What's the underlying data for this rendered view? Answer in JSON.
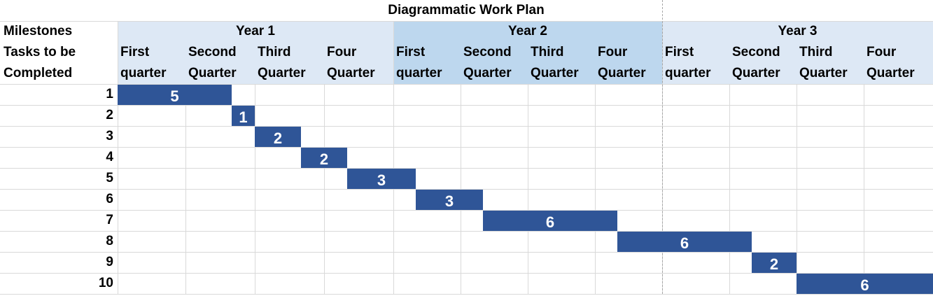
{
  "title": "Diagrammatic Work Plan",
  "header": {
    "milestones_label": "Milestones",
    "tasks_label_line1": "Tasks to be",
    "tasks_label_line2": "Completed"
  },
  "years": [
    {
      "label": "Year 1",
      "color": "#dde8f5"
    },
    {
      "label": "Year 2",
      "color": "#bdd7ee"
    },
    {
      "label": "Year 3",
      "color": "#dde8f5"
    }
  ],
  "quarters": [
    {
      "line1": "First",
      "line2": "quarter"
    },
    {
      "line1": "Second",
      "line2": "Quarter"
    },
    {
      "line1": "Third",
      "line2": "Quarter"
    },
    {
      "line1": "Four",
      "line2": "Quarter"
    },
    {
      "line1": "First",
      "line2": "quarter"
    },
    {
      "line1": "Second",
      "line2": "Quarter"
    },
    {
      "line1": "Third",
      "line2": "Quarter"
    },
    {
      "line1": "Four",
      "line2": "Quarter"
    },
    {
      "line1": "First",
      "line2": "quarter"
    },
    {
      "line1": "Second",
      "line2": "Quarter"
    },
    {
      "line1": "Third",
      "line2": "Quarter"
    },
    {
      "line1": "Four",
      "line2": "Quarter"
    }
  ],
  "chart_data": {
    "type": "bar",
    "subtype": "gantt",
    "title": "Diagrammatic Work Plan",
    "time_unit": "months",
    "categories": [
      "1",
      "2",
      "3",
      "4",
      "5",
      "6",
      "7",
      "8",
      "9",
      "10"
    ],
    "tasks": [
      {
        "task": "1",
        "start": 0,
        "duration": 5,
        "label": "5"
      },
      {
        "task": "2",
        "start": 5,
        "duration": 1,
        "label": "1"
      },
      {
        "task": "3",
        "start": 6,
        "duration": 2,
        "label": "2"
      },
      {
        "task": "4",
        "start": 8,
        "duration": 2,
        "label": "2"
      },
      {
        "task": "5",
        "start": 10,
        "duration": 3,
        "label": "3"
      },
      {
        "task": "6",
        "start": 13,
        "duration": 3,
        "label": "3"
      },
      {
        "task": "7",
        "start": 16,
        "duration": 6,
        "label": "6"
      },
      {
        "task": "8",
        "start": 22,
        "duration": 6,
        "label": "6"
      },
      {
        "task": "9",
        "start": 28,
        "duration": 2,
        "label": "2"
      },
      {
        "task": "10",
        "start": 30,
        "duration": 6,
        "label": "6"
      }
    ],
    "x_range": [
      0,
      36
    ],
    "bar_color": "#2f5597",
    "grid": true
  }
}
